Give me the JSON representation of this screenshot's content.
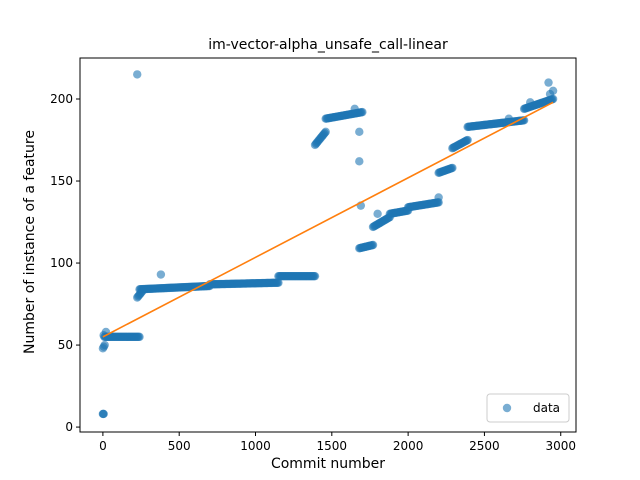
{
  "chart_data": {
    "type": "scatter",
    "title": "im-vector-alpha_unsafe_call-linear",
    "xlabel": "Commit number",
    "ylabel": "Number of instance of a feature",
    "xlim": [
      -150,
      3100
    ],
    "ylim": [
      -3,
      225
    ],
    "xticks": [
      0,
      500,
      1000,
      1500,
      2000,
      2500,
      3000
    ],
    "yticks": [
      0,
      50,
      100,
      150,
      200
    ],
    "grid": false,
    "legend": {
      "placement": "lower-right",
      "entries": [
        "data"
      ]
    },
    "colors": {
      "data": "#1f77b4",
      "fit": "#ff7f0e"
    },
    "series": [
      {
        "name": "data",
        "kind": "scatter",
        "segments": [
          {
            "x0": 0,
            "x1": 5,
            "y0": 8,
            "y1": 8
          },
          {
            "x0": 0,
            "x1": 12,
            "y0": 48,
            "y1": 50
          },
          {
            "x0": 10,
            "x1": 240,
            "y0": 55,
            "y1": 55
          },
          {
            "x0": 225,
            "x1": 260,
            "y0": 79,
            "y1": 83
          },
          {
            "x0": 240,
            "x1": 700,
            "y0": 84,
            "y1": 86
          },
          {
            "x0": 700,
            "x1": 1150,
            "y0": 87,
            "y1": 88
          },
          {
            "x0": 1150,
            "x1": 1390,
            "y0": 92,
            "y1": 92
          },
          {
            "x0": 1390,
            "x1": 1460,
            "y0": 172,
            "y1": 180
          },
          {
            "x0": 1460,
            "x1": 1700,
            "y0": 188,
            "y1": 192
          },
          {
            "x0": 1680,
            "x1": 1770,
            "y0": 109,
            "y1": 111
          },
          {
            "x0": 1770,
            "x1": 1880,
            "y0": 122,
            "y1": 128
          },
          {
            "x0": 1880,
            "x1": 2000,
            "y0": 130,
            "y1": 132
          },
          {
            "x0": 2000,
            "x1": 2200,
            "y0": 134,
            "y1": 137
          },
          {
            "x0": 2200,
            "x1": 2290,
            "y0": 155,
            "y1": 158
          },
          {
            "x0": 2290,
            "x1": 2390,
            "y0": 170,
            "y1": 175
          },
          {
            "x0": 2390,
            "x1": 2760,
            "y0": 183,
            "y1": 187
          },
          {
            "x0": 2760,
            "x1": 2950,
            "y0": 194,
            "y1": 200
          }
        ],
        "points": [
          [
            225,
            215
          ],
          [
            20,
            58
          ],
          [
            5,
            56
          ],
          [
            380,
            93
          ],
          [
            1650,
            194
          ],
          [
            1680,
            180
          ],
          [
            1680,
            162
          ],
          [
            1690,
            135
          ],
          [
            1800,
            130
          ],
          [
            2200,
            140
          ],
          [
            2920,
            210
          ],
          [
            2950,
            205
          ],
          [
            2930,
            203
          ],
          [
            2660,
            188
          ],
          [
            2800,
            198
          ]
        ]
      },
      {
        "name": "",
        "kind": "line",
        "x": [
          0,
          2950
        ],
        "y": [
          55,
          198
        ]
      }
    ]
  }
}
